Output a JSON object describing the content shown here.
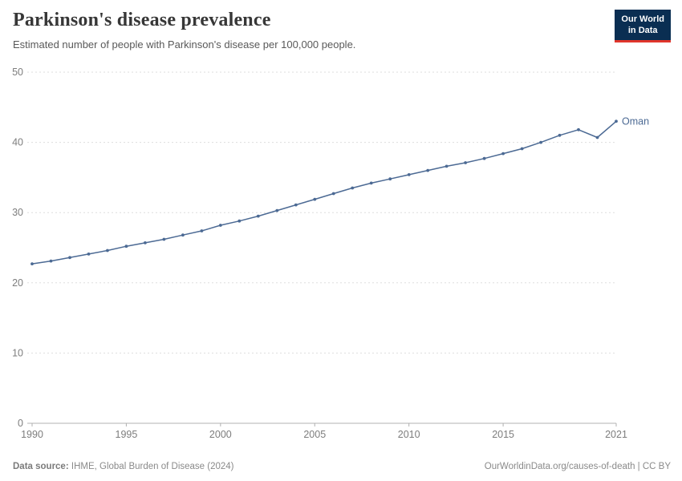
{
  "header": {
    "title": "Parkinson's disease prevalence",
    "subtitle": "Estimated number of people with Parkinson's disease per 100,000 people.",
    "logo": {
      "line1": "Our World",
      "line2": "in Data"
    }
  },
  "footer": {
    "source_label": "Data source:",
    "source_text": "IHME, Global Burden of Disease (2024)",
    "credit": "OurWorldinData.org/causes-of-death | CC BY"
  },
  "chart_data": {
    "type": "line",
    "title": "Parkinson's disease prevalence",
    "subtitle": "Estimated number of people with Parkinson's disease per 100,000 people.",
    "xlabel": "",
    "ylabel": "",
    "xlim": [
      1990,
      2021
    ],
    "ylim": [
      0,
      50
    ],
    "yticks": [
      0,
      10,
      20,
      30,
      40,
      50
    ],
    "xticks": [
      1990,
      1995,
      2000,
      2005,
      2010,
      2015,
      2021
    ],
    "grid": "horizontal-dashed",
    "legend_position": "end-of-line-label",
    "series": [
      {
        "name": "Oman",
        "color": "#4c6a94",
        "x": [
          1990,
          1991,
          1992,
          1993,
          1994,
          1995,
          1996,
          1997,
          1998,
          1999,
          2000,
          2001,
          2002,
          2003,
          2004,
          2005,
          2006,
          2007,
          2008,
          2009,
          2010,
          2011,
          2012,
          2013,
          2014,
          2015,
          2016,
          2017,
          2018,
          2019,
          2020,
          2021
        ],
        "values": [
          22.7,
          23.1,
          23.6,
          24.1,
          24.6,
          25.2,
          25.7,
          26.2,
          26.8,
          27.4,
          28.2,
          28.8,
          29.5,
          30.3,
          31.1,
          31.9,
          32.7,
          33.5,
          34.2,
          34.8,
          35.4,
          36.0,
          36.6,
          37.1,
          37.7,
          38.4,
          39.1,
          40.0,
          41.0,
          41.8,
          40.7,
          43.0
        ]
      }
    ]
  }
}
